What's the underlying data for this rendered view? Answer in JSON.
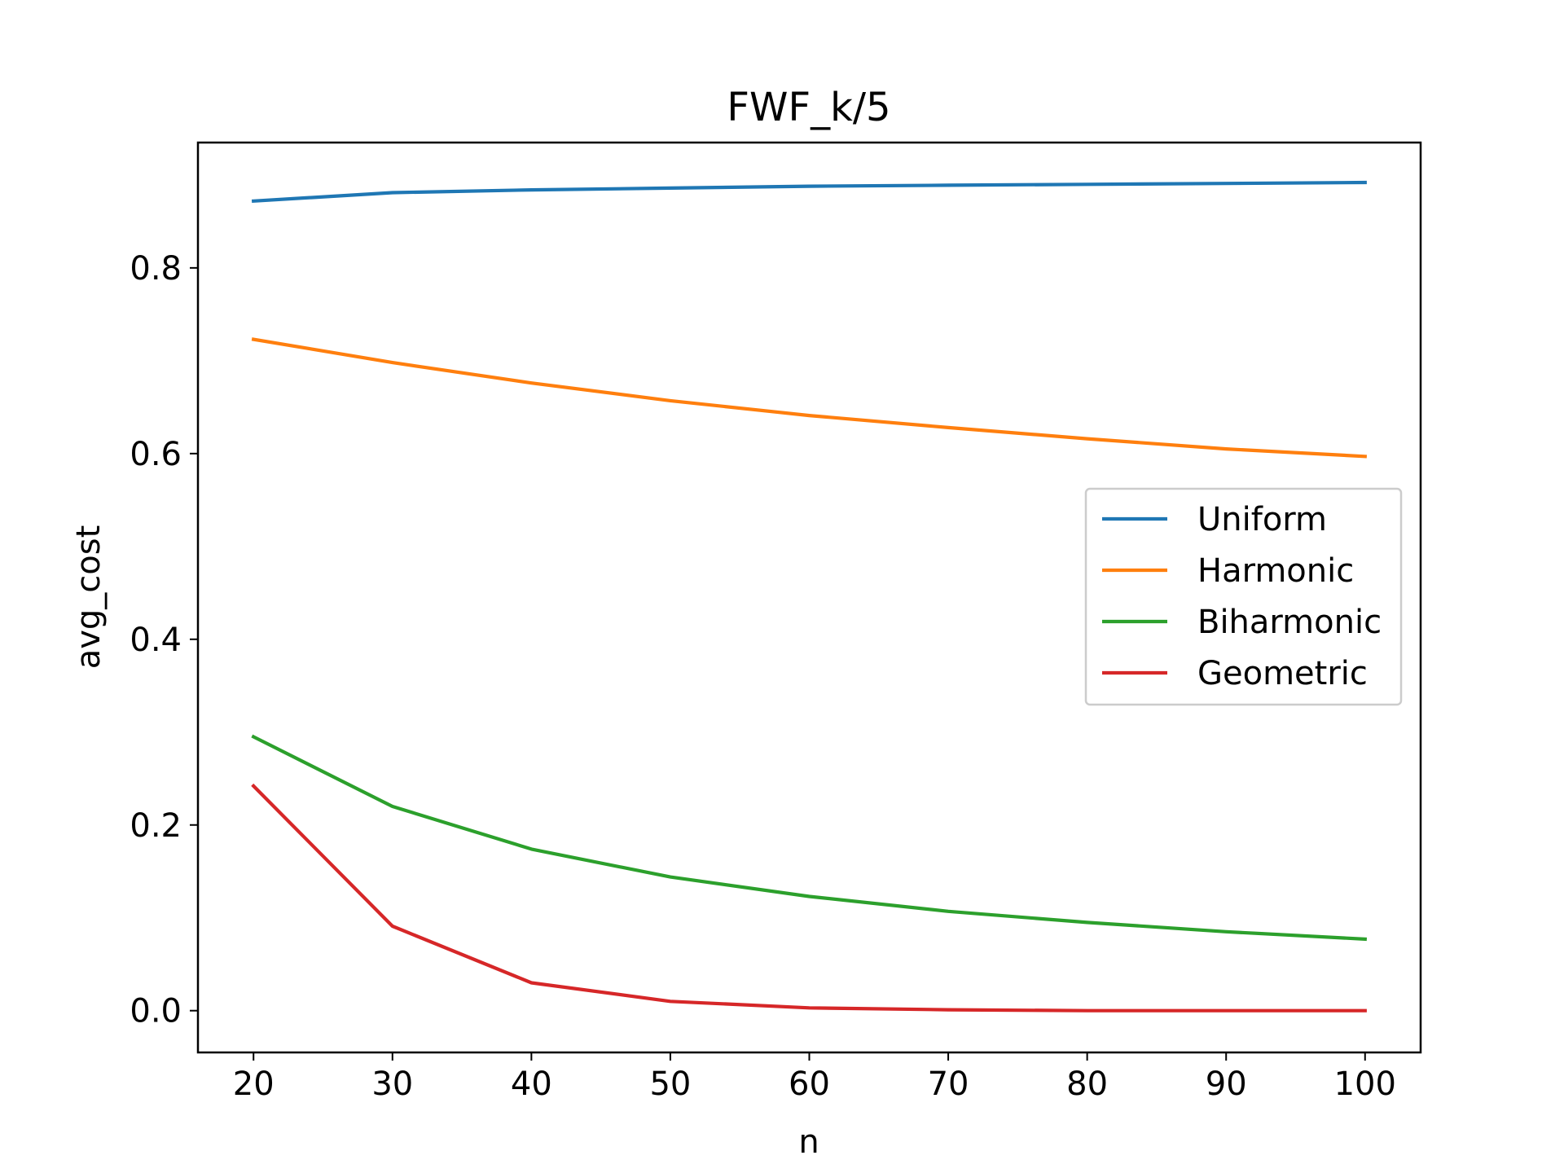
{
  "chart_data": {
    "type": "line",
    "title": "FWF_k/5",
    "xlabel": "n",
    "ylabel": "avg_cost",
    "x": [
      20,
      30,
      40,
      50,
      60,
      70,
      80,
      90,
      100
    ],
    "xlim": [
      16,
      104
    ],
    "ylim": [
      -0.045,
      0.935
    ],
    "xticks": [
      20,
      30,
      40,
      50,
      60,
      70,
      80,
      90,
      100
    ],
    "xtick_labels": [
      "20",
      "30",
      "40",
      "50",
      "60",
      "70",
      "80",
      "90",
      "100"
    ],
    "yticks": [
      0.0,
      0.2,
      0.4,
      0.6,
      0.8
    ],
    "ytick_labels": [
      "0.0",
      "0.2",
      "0.4",
      "0.6",
      "0.8"
    ],
    "grid": false,
    "legend_position": "center-right",
    "series": [
      {
        "name": "Uniform",
        "color": "#1f77b4",
        "values": [
          0.872,
          0.881,
          0.884,
          0.886,
          0.888,
          0.889,
          0.89,
          0.891,
          0.892
        ]
      },
      {
        "name": "Harmonic",
        "color": "#ff7f0e",
        "values": [
          0.723,
          0.698,
          0.676,
          0.657,
          0.641,
          0.628,
          0.616,
          0.605,
          0.597
        ]
      },
      {
        "name": "Biharmonic",
        "color": "#2ca02c",
        "values": [
          0.295,
          0.22,
          0.174,
          0.144,
          0.123,
          0.107,
          0.095,
          0.085,
          0.077
        ]
      },
      {
        "name": "Geometric",
        "color": "#d62728",
        "values": [
          0.242,
          0.091,
          0.03,
          0.01,
          0.003,
          0.001,
          0.0,
          0.0,
          0.0
        ]
      }
    ]
  }
}
